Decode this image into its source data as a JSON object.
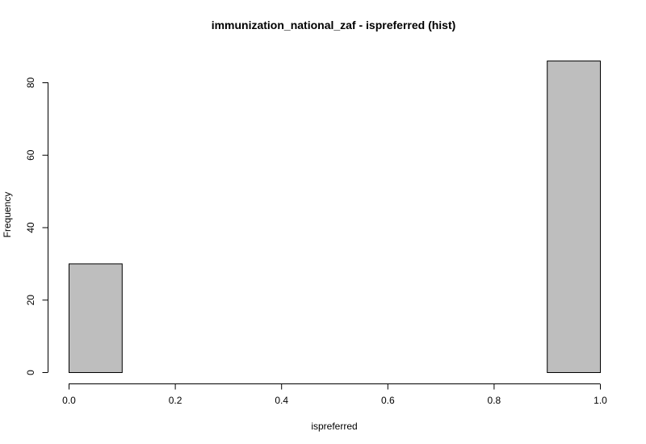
{
  "chart_data": {
    "type": "bar",
    "title": "immunization_national_zaf - ispreferred (hist)",
    "xlabel": "ispreferred",
    "ylabel": "Frequency",
    "xlim": [
      0,
      1
    ],
    "ylim": [
      0,
      86
    ],
    "x_ticks": [
      "0.0",
      "0.2",
      "0.4",
      "0.6",
      "0.8",
      "1.0"
    ],
    "y_ticks": [
      "0",
      "20",
      "40",
      "60",
      "80"
    ],
    "bins": [
      {
        "from": 0.0,
        "to": 0.1,
        "count": 30
      },
      {
        "from": 0.1,
        "to": 0.2,
        "count": 0
      },
      {
        "from": 0.2,
        "to": 0.3,
        "count": 0
      },
      {
        "from": 0.3,
        "to": 0.4,
        "count": 0
      },
      {
        "from": 0.4,
        "to": 0.5,
        "count": 0
      },
      {
        "from": 0.5,
        "to": 0.6,
        "count": 0
      },
      {
        "from": 0.6,
        "to": 0.7,
        "count": 0
      },
      {
        "from": 0.7,
        "to": 0.8,
        "count": 0
      },
      {
        "from": 0.8,
        "to": 0.9,
        "count": 0
      },
      {
        "from": 0.9,
        "to": 1.0,
        "count": 86
      }
    ],
    "bar_color": "#bebebe",
    "grid": false,
    "legend": "none"
  }
}
